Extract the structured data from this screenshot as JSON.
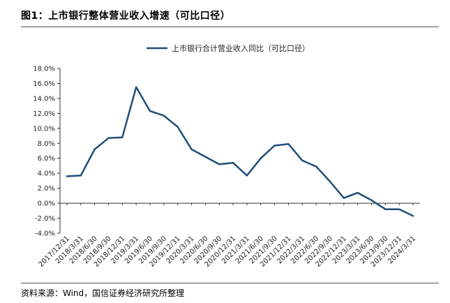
{
  "figure_title": "图1：上市银行整体营业收入增速（可比口径）",
  "source_note": "资料来源：Wind，国信证券经济研究所整理",
  "chart_data": {
    "type": "line",
    "title": "",
    "xlabel": "",
    "ylabel": "",
    "legend_position": "top",
    "line_color": "#1f4e79",
    "grid": false,
    "ylim": [
      -4,
      18
    ],
    "yticks": [
      "18.0%",
      "16.0%",
      "14.0%",
      "12.0%",
      "10.0%",
      "8.0%",
      "6.0%",
      "4.0%",
      "2.0%",
      "0.0%",
      "-2.0%",
      "-4.0%"
    ],
    "categories": [
      "2017/12/31",
      "2018/3/31",
      "2018/6/30",
      "2018/9/30",
      "2018/12/31",
      "2019/3/31",
      "2019/6/30",
      "2019/9/30",
      "2019/12/31",
      "2020/3/31",
      "2020/6/30",
      "2020/9/30",
      "2020/12/31",
      "2021/3/31",
      "2021/6/30",
      "2021/9/30",
      "2021/12/31",
      "2022/3/31",
      "2022/6/30",
      "2022/9/30",
      "2022/12/31",
      "2023/3/31",
      "2023/6/30",
      "2023/9/30",
      "2023/12/31",
      "2024/3/31"
    ],
    "series": [
      {
        "name": "上市银行合计营业收入同比（可比口径）",
        "values": [
          3.6,
          3.7,
          7.2,
          8.7,
          8.8,
          15.5,
          12.3,
          11.7,
          10.2,
          7.2,
          6.2,
          5.2,
          5.4,
          3.7,
          6.0,
          7.7,
          7.9,
          5.7,
          4.9,
          2.9,
          0.7,
          1.4,
          0.4,
          -0.8,
          -0.8,
          -1.7
        ]
      }
    ]
  }
}
